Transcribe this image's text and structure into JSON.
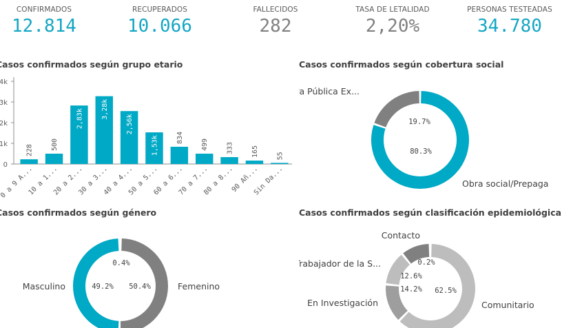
{
  "colors": {
    "primary": "#00A9C5",
    "dark_gray": "#808080",
    "mid_gray": "#9E9E9E",
    "light_gray": "#BDBDBD",
    "text": "#595959"
  },
  "kpis": [
    {
      "label": "CONFIRMADOS",
      "value": "12.814",
      "color": "#14A6C3"
    },
    {
      "label": "RECUPERADOS",
      "value": "10.066",
      "color": "#14A6C3"
    },
    {
      "label": "FALLECIDOS",
      "value": "282",
      "color": "#808080"
    },
    {
      "label": "TASA DE LETALIDAD",
      "value": "2,20%",
      "color": "#808080"
    },
    {
      "label": "PERSONAS TESTEADAS",
      "value": "34.780",
      "color": "#14A6C3"
    }
  ],
  "titles": {
    "age": "Casos confirmados según grupo etario",
    "coverage": "Casos confirmados según cobertura social",
    "gender": "Casos confirmados según género",
    "epi": "Casos confirmados según clasificación epidemiológica"
  },
  "chart_data": [
    {
      "type": "bar",
      "title": "Casos confirmados según grupo etario",
      "categories": [
        "0 a 9 A...",
        "10 a 1...",
        "20 a 2...",
        "30 a 3...",
        "40 a 4...",
        "50 a 5...",
        "60 a 6...",
        "70 a 7...",
        "80 a 8...",
        "90 Añ...",
        "Sin Da..."
      ],
      "values": [
        228,
        500,
        2830,
        3280,
        2560,
        1530,
        834,
        499,
        333,
        165,
        55
      ],
      "data_labels": [
        "228",
        "500",
        "2,83k",
        "3,28k",
        "2,56k",
        "1,53k",
        "834",
        "499",
        "333",
        "165",
        "55"
      ],
      "ytick_labels": [
        "0",
        "1k",
        "2k",
        "3k",
        "4k"
      ],
      "ylim": [
        0,
        4000
      ],
      "color": "#00A9C5"
    },
    {
      "type": "pie",
      "title": "Casos confirmados según cobertura social",
      "slices": [
        {
          "label": "Obra social/Prepaga",
          "value": 80.3,
          "pct": "80.3%",
          "color": "#00A9C5"
        },
        {
          "label": "Cobertura Pública Ex...",
          "value": 19.7,
          "pct": "19.7%",
          "color": "#808080"
        }
      ]
    },
    {
      "type": "pie",
      "title": "Casos confirmados según género",
      "slices": [
        {
          "label": "Femenino",
          "value": 50.4,
          "pct": "50.4%",
          "color": "#808080"
        },
        {
          "label": "Masculino",
          "value": 49.2,
          "pct": "49.2%",
          "color": "#00A9C5"
        },
        {
          "label": "",
          "value": 0.4,
          "pct": "0.4%",
          "color": "#BDBDBD"
        }
      ]
    },
    {
      "type": "pie",
      "title": "Casos confirmados según clasificación epidemiológica",
      "slices": [
        {
          "label": "Comunitario",
          "value": 62.5,
          "pct": "62.5%",
          "color": "#BDBDBD"
        },
        {
          "label": "En Investigación",
          "value": 14.2,
          "pct": "14.2%",
          "color": "#9E9E9E"
        },
        {
          "label": "Trabajador de la S...",
          "value": 12.6,
          "pct": "12.6%",
          "color": "#BDBDBD"
        },
        {
          "label": "Contacto",
          "value": 10.7,
          "pct": "",
          "color": "#808080"
        },
        {
          "label": "",
          "value": 0.2,
          "pct": "0.2%",
          "color": "#BDBDBD"
        }
      ]
    }
  ]
}
